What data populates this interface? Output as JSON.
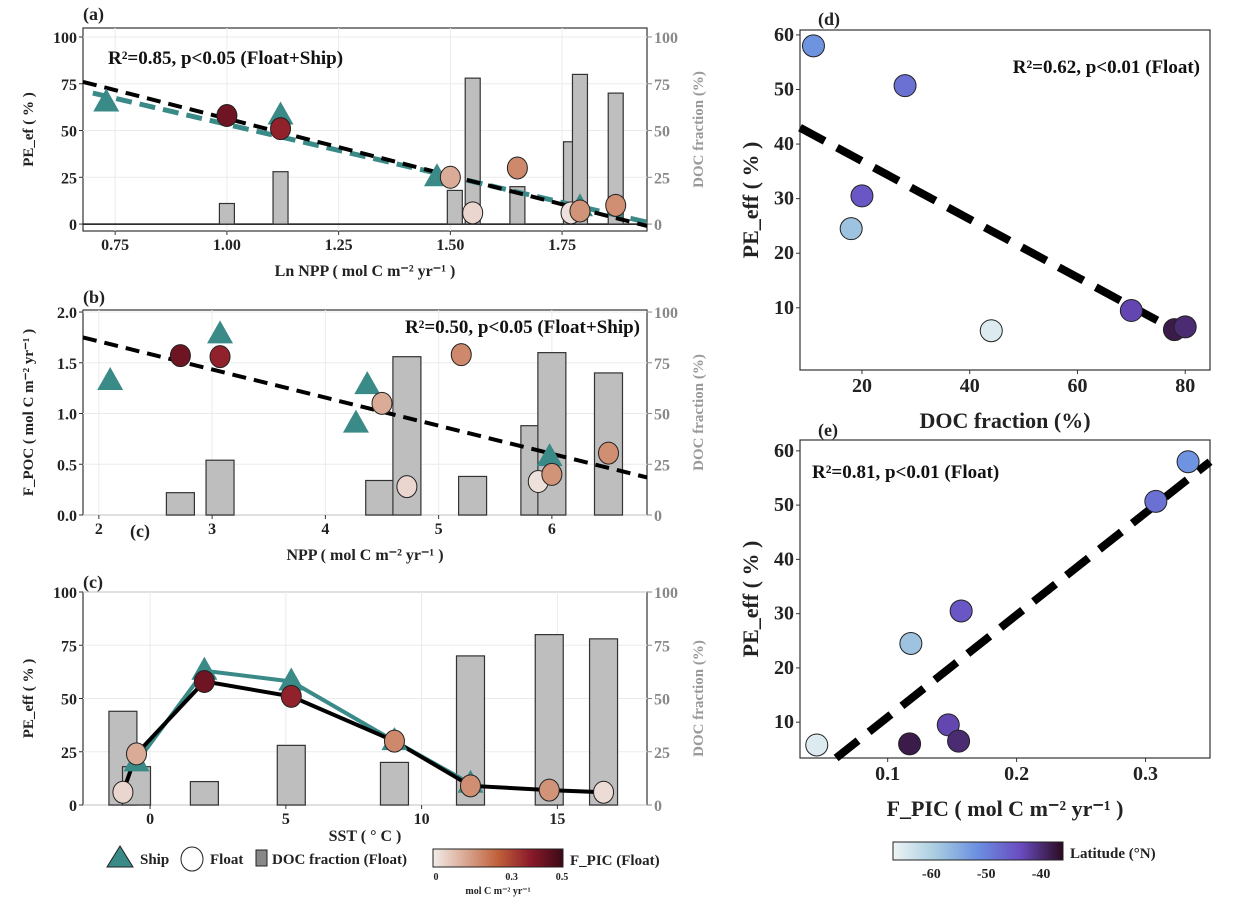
{
  "colors": {
    "ship": "#3a8a88",
    "bar": "#bebebe",
    "regression": "#000000",
    "fpic_scale": [
      "#f2ecea",
      "#d9a892",
      "#c0603a",
      "#8b1a2a",
      "#3a0a15"
    ],
    "lat_scale": [
      "#eef5f5",
      "#a8cde0",
      "#6a8fe0",
      "#6a4cc0",
      "#2a0a20"
    ]
  },
  "chart_data": [
    {
      "panel": "(a)",
      "type": "scatter+bar",
      "annotation": "R²=0.85, p<0.05 (Float+Ship)",
      "xlabel": "Ln NPP ( mol C m⁻² yr⁻¹ )",
      "ylabel": "PE_ef ( % )",
      "y2label": "DOC fraction (%)",
      "xlim": [
        0.678,
        1.94
      ],
      "ylim": [
        -3.7,
        104.8
      ],
      "xticks": [
        "0.75",
        "1.00",
        "1.25",
        "1.50",
        "1.75"
      ],
      "xtick_values": [
        0.75,
        1.0,
        1.25,
        1.5,
        1.75
      ],
      "yticks": [
        "0",
        "25",
        "50",
        "75",
        "100"
      ],
      "ytick_values": [
        0,
        25,
        50,
        75,
        100
      ],
      "y2ticks": [
        "0",
        "25",
        "50",
        "75",
        "100"
      ],
      "ship": [
        [
          0.73,
          65
        ],
        [
          1.12,
          58
        ],
        [
          1.47,
          25
        ],
        [
          1.79,
          9
        ]
      ],
      "float": [
        [
          1.0,
          58,
          0.42
        ],
        [
          1.12,
          51,
          0.36
        ],
        [
          1.5,
          25,
          0.12
        ],
        [
          1.55,
          6,
          0.04
        ],
        [
          1.65,
          30,
          0.18
        ],
        [
          1.77,
          6,
          0.02
        ],
        [
          1.79,
          7,
          0.16
        ],
        [
          1.87,
          10,
          0.17
        ]
      ],
      "doc_bars": [
        [
          1.0,
          11
        ],
        [
          1.12,
          28
        ],
        [
          1.51,
          18
        ],
        [
          1.55,
          78
        ],
        [
          1.65,
          20
        ],
        [
          1.77,
          44
        ],
        [
          1.79,
          80
        ],
        [
          1.87,
          70
        ]
      ],
      "fit_all": [
        [
          0.678,
          76
        ],
        [
          1.94,
          -1
        ]
      ],
      "fit_ship": [
        [
          0.7,
          70
        ],
        [
          1.94,
          1
        ]
      ]
    },
    {
      "panel": "(b)",
      "type": "scatter+bar",
      "annotation": "R²=0.50, p<0.05 (Float+Ship)",
      "xlabel": "NPP ( mol C m⁻² yr⁻¹ )",
      "ylabel": "F_POC ( mol C m⁻² yr⁻¹ )",
      "y2label": "DOC fraction (%)",
      "xlim": [
        1.86,
        6.84
      ],
      "ylim": [
        0,
        2.02
      ],
      "xticks": [
        "2",
        "3",
        "4",
        "5",
        "6"
      ],
      "xtick_values": [
        2,
        3,
        4,
        5,
        6
      ],
      "yticks": [
        "0.0",
        "0.5",
        "1.0",
        "1.5",
        "2.0"
      ],
      "ytick_values": [
        0,
        0.5,
        1,
        1.5,
        2
      ],
      "y2ticks": [
        "0",
        "25",
        "50",
        "75",
        "100"
      ],
      "ship": [
        [
          2.1,
          1.32
        ],
        [
          3.07,
          1.78
        ],
        [
          4.37,
          1.28
        ],
        [
          4.27,
          0.9
        ],
        [
          5.98,
          0.57
        ]
      ],
      "float": [
        [
          2.72,
          1.57,
          0.42
        ],
        [
          3.07,
          1.56,
          0.36
        ],
        [
          4.5,
          1.1,
          0.12
        ],
        [
          4.72,
          0.28,
          0.04
        ],
        [
          5.2,
          1.58,
          0.18
        ],
        [
          5.88,
          0.33,
          0.02
        ],
        [
          6.0,
          0.4,
          0.16
        ],
        [
          6.5,
          0.61,
          0.17
        ]
      ],
      "doc_bars": [
        [
          2.72,
          11
        ],
        [
          3.07,
          27
        ],
        [
          4.48,
          17
        ],
        [
          4.72,
          78
        ],
        [
          5.3,
          19
        ],
        [
          5.85,
          44
        ],
        [
          6.0,
          80
        ],
        [
          6.5,
          70
        ]
      ],
      "fit_all": [
        [
          1.86,
          1.75
        ],
        [
          6.84,
          0.37
        ]
      ],
      "stray_label": "(c)"
    },
    {
      "panel": "(c)",
      "type": "line+bar",
      "xlabel": "SST ( ° C )",
      "ylabel": "PE_eff ( % )",
      "y2label": "DOC fraction (%)",
      "xlim": [
        -2.47,
        18.3
      ],
      "ylim": [
        0,
        100
      ],
      "xticks": [
        "0",
        "5",
        "10",
        "15"
      ],
      "xtick_values": [
        0,
        5,
        10,
        15
      ],
      "yticks": [
        "0",
        "25",
        "50",
        "75",
        "100"
      ],
      "ytick_values": [
        0,
        25,
        50,
        75,
        100
      ],
      "y2ticks": [
        "0",
        "25",
        "50",
        "75",
        "100"
      ],
      "ship": [
        [
          -0.5,
          20
        ],
        [
          2,
          63
        ],
        [
          5.2,
          58
        ],
        [
          9,
          30
        ],
        [
          11.8,
          10
        ]
      ],
      "float": [
        [
          -1,
          6,
          0.04
        ],
        [
          -0.5,
          24,
          0.12
        ],
        [
          2,
          58,
          0.42
        ],
        [
          5.2,
          51,
          0.36
        ],
        [
          9,
          30,
          0.18
        ],
        [
          11.8,
          9,
          0.17
        ],
        [
          14.7,
          7,
          0.16
        ],
        [
          16.7,
          6,
          0.03
        ]
      ],
      "doc_bars": [
        [
          -1,
          44
        ],
        [
          -0.5,
          18
        ],
        [
          2,
          11
        ],
        [
          5.2,
          28
        ],
        [
          9,
          20
        ],
        [
          11.8,
          70
        ],
        [
          14.7,
          80
        ],
        [
          16.7,
          78
        ]
      ]
    },
    {
      "panel": "(d)",
      "type": "scatter",
      "annotation": "R²=0.62, p<0.01 (Float)",
      "xlabel": "DOC fraction (%)",
      "ylabel": "PE_eff ( % )",
      "xlim": [
        8.5,
        84.6
      ],
      "ylim": [
        -1.4,
        60.9
      ],
      "xticks": [
        "20",
        "40",
        "60",
        "80"
      ],
      "xtick_values": [
        20,
        40,
        60,
        80
      ],
      "yticks": [
        "10",
        "20",
        "30",
        "40",
        "50",
        "60"
      ],
      "ytick_values": [
        10,
        20,
        30,
        40,
        50,
        60
      ],
      "points": [
        [
          11,
          58,
          -52
        ],
        [
          28,
          50.7,
          -48
        ],
        [
          20,
          30.5,
          -45
        ],
        [
          18,
          24.5,
          -58
        ],
        [
          44,
          5.8,
          -65
        ],
        [
          70,
          9.5,
          -43
        ],
        [
          78,
          6,
          -38
        ],
        [
          80,
          6.5,
          -40
        ]
      ],
      "fit_all": [
        [
          8.5,
          43
        ],
        [
          78,
          6
        ]
      ]
    },
    {
      "panel": "(e)",
      "type": "scatter",
      "annotation": "R²=0.81, p<0.01 (Float)",
      "xlabel": "F_PIC ( mol C m⁻² yr⁻¹ )",
      "ylabel": "PE_eff ( % )",
      "xlim": [
        0.032,
        0.35
      ],
      "ylim": [
        3.4,
        62
      ],
      "xticks": [
        "0.1",
        "0.2",
        "0.3"
      ],
      "xtick_values": [
        0.1,
        0.2,
        0.3
      ],
      "yticks": [
        "10",
        "20",
        "30",
        "40",
        "50",
        "60"
      ],
      "ytick_values": [
        10,
        20,
        30,
        40,
        50,
        60
      ],
      "points": [
        [
          0.333,
          58,
          -52
        ],
        [
          0.308,
          50.7,
          -48
        ],
        [
          0.157,
          30.5,
          -45
        ],
        [
          0.118,
          24.5,
          -58
        ],
        [
          0.045,
          5.8,
          -65
        ],
        [
          0.147,
          9.5,
          -43
        ],
        [
          0.117,
          6,
          -38
        ],
        [
          0.155,
          6.5,
          -40
        ]
      ],
      "fit_all": [
        [
          0.06,
          3.4
        ],
        [
          0.35,
          58
        ]
      ]
    }
  ],
  "legend_left": {
    "ship": "Ship",
    "float": "Float",
    "doc": "DOC fraction (Float)",
    "fpic_title": "F_PIC (Float)",
    "fpic_ticks": [
      "0",
      "0.3",
      "0.5"
    ],
    "fpic_tick_values": [
      0,
      0.3,
      0.5
    ],
    "fpic_unit": "mol C m⁻² yr⁻¹"
  },
  "legend_right": {
    "title": "Latitude  (°N)",
    "ticks": [
      "-60",
      "-50",
      "-40"
    ],
    "tick_values": [
      -60,
      -50,
      -40
    ],
    "range": [
      -67,
      -36
    ]
  }
}
